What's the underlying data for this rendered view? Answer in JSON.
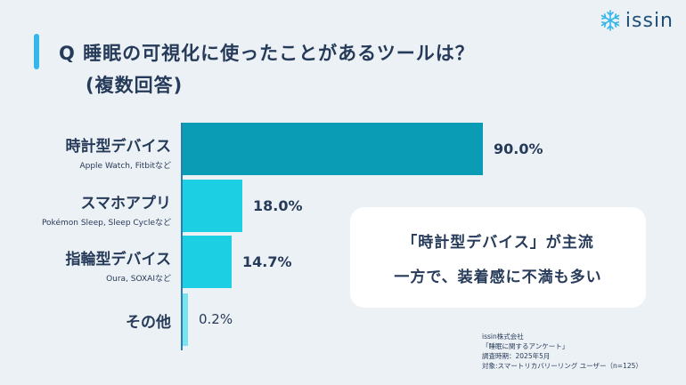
{
  "title": {
    "line1": "Q 睡眠の可視化に使ったことがあるツールは？",
    "line2": "(複数回答)"
  },
  "logo": {
    "text": "issin",
    "icon": "snowflake-icon"
  },
  "chart_data": {
    "type": "bar",
    "orientation": "horizontal",
    "unit": "%",
    "xlim": [
      0,
      100
    ],
    "categories": [
      "時計型デバイス",
      "スマホアプリ",
      "指輪型デバイス",
      "その他"
    ],
    "subtitles": [
      "Apple Watch, Fitbitなど",
      "Pokémon Sleep, Sleep Cycleなど",
      "Oura, SOXAIなど",
      ""
    ],
    "values": [
      90.0,
      18.0,
      14.7,
      0.2
    ],
    "value_labels": [
      "90.0%",
      "18.0%",
      "14.7%",
      "0.2%"
    ],
    "colors": [
      "#0a9bb5",
      "#1ccfe3",
      "#1ccfe3",
      "#7be3ee"
    ]
  },
  "callout": {
    "line1": "「時計型デバイス」が主流",
    "line2": "一方で、装着感に不満も多い"
  },
  "source": {
    "lines": [
      "issin株式会社",
      "「睡眠に関するアンケート」",
      "調査時期：2025年5月",
      "対象:スマートリカバリーリング ユーザー（n=125）"
    ]
  },
  "colors": {
    "accent": "#35b6ea",
    "background": "#ecf1f5",
    "text": "#263a59",
    "axis": "#2a7fb0"
  }
}
